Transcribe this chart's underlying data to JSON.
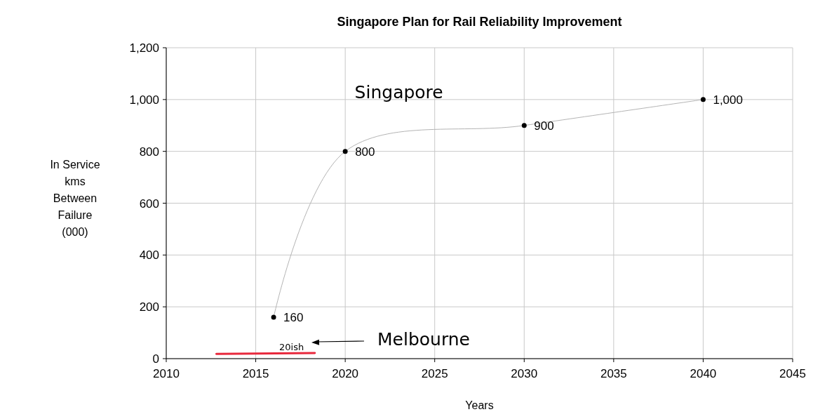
{
  "chart_data": {
    "type": "line",
    "title": "Singapore Plan for Rail Reliability Improvement",
    "xlabel": "Years",
    "ylabel": "In Service\nkms\nBetween\nFailure\n(000)",
    "xlim": [
      2010,
      2045
    ],
    "xticks": [
      2010,
      2015,
      2020,
      2025,
      2030,
      2035,
      2040,
      2045
    ],
    "ylim": [
      0,
      1200
    ],
    "yticks": [
      0,
      200,
      400,
      600,
      {
        "value": 800,
        "label": "800"
      },
      {
        "value": 1000,
        "label": "1,000"
      },
      {
        "value": 1200,
        "label": "1,200"
      }
    ],
    "grid": true,
    "series": [
      {
        "name": "Singapore",
        "color": "#b4b4b4",
        "marker": "circle",
        "x": [
          2016,
          2020,
          2030,
          2040
        ],
        "values": [
          160,
          800,
          900,
          1000
        ],
        "value_labels": [
          "160",
          "800",
          "900",
          "1,000"
        ]
      },
      {
        "color": "#e8283c",
        "marker": "none",
        "x": [
          2012.8,
          2018.3
        ],
        "values": [
          18,
          22
        ]
      }
    ],
    "annotations": [
      {
        "text": "20ish",
        "x": 2017,
        "y": 22
      },
      "Melbourne"
    ]
  }
}
